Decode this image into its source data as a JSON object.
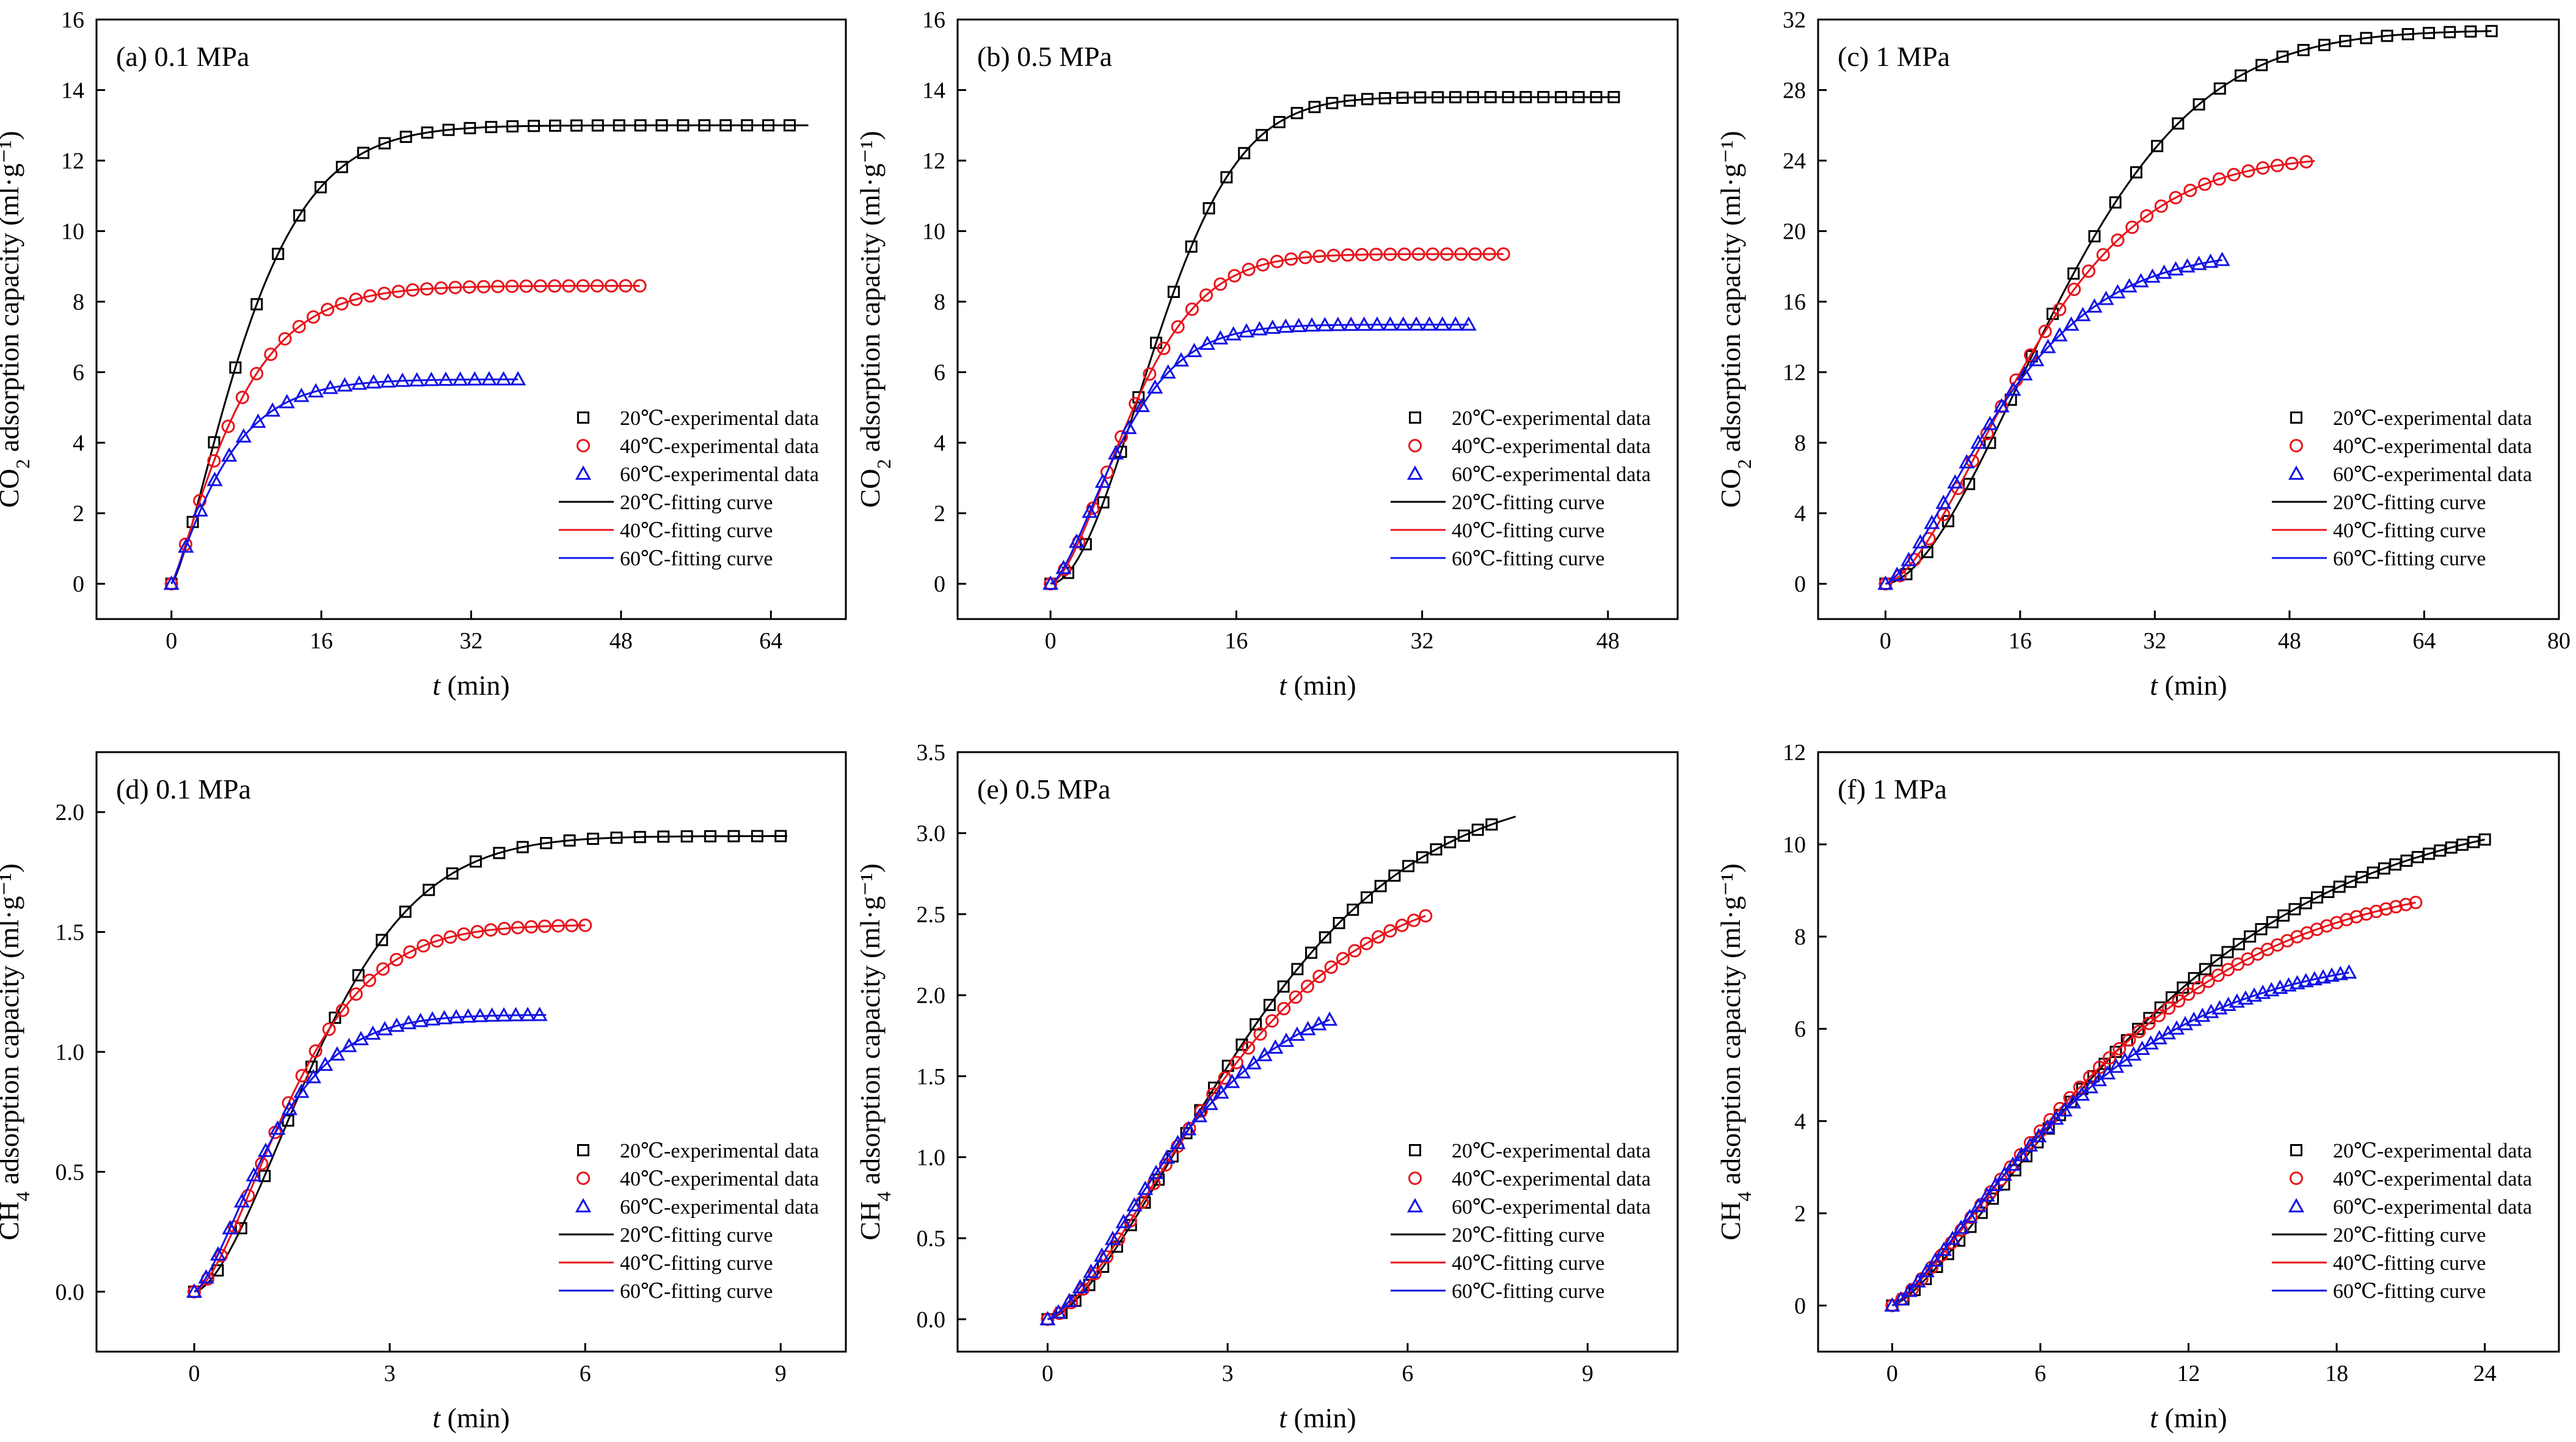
{
  "colors": {
    "s20": "#000000",
    "s40": "#e8141b",
    "s60": "#1414e6"
  },
  "legend": {
    "exp20": "20℃-experimental data",
    "exp40": "40℃-experimental data",
    "exp60": "60℃-experimental data",
    "fit20": "20℃-fitting curve",
    "fit40": "40℃-fitting curve",
    "fit60": "60℃-fitting curve"
  },
  "xlabel": "(min)",
  "chart_data": [
    {
      "panel": "(a) 0.1 MPa",
      "type": "scatter",
      "gas": "CO2",
      "ylabel": "adsorption capacity (ml·g⁻¹)",
      "xlim": [
        -8,
        72
      ],
      "ylim": [
        -1,
        16
      ],
      "xticks": [
        0,
        16,
        32,
        48,
        64
      ],
      "yticks": [
        0,
        2,
        4,
        6,
        8,
        10,
        12,
        14,
        16
      ],
      "series": [
        {
          "name": "20℃",
          "marker": "square",
          "qmax": 13.0,
          "rate": 0.105,
          "rexp": 1.35,
          "tmax": 68,
          "xmax_exp": 66,
          "n": 30
        },
        {
          "name": "40℃",
          "marker": "circle",
          "qmax": 8.45,
          "rate": 0.13,
          "rexp": 1.2,
          "tmax": 50,
          "xmax_exp": 50,
          "n": 34
        },
        {
          "name": "60℃",
          "marker": "triangle",
          "qmax": 5.8,
          "rate": 0.16,
          "rexp": 1.15,
          "tmax": 37,
          "xmax_exp": 37,
          "n": 25
        }
      ]
    },
    {
      "panel": "(b) 0.5 MPa",
      "type": "scatter",
      "gas": "CO2",
      "ylabel": "adsorption capacity (ml·g⁻¹)",
      "xlim": [
        -8,
        54
      ],
      "ylim": [
        -1,
        16
      ],
      "xticks": [
        0,
        16,
        32,
        48
      ],
      "yticks": [
        0,
        2,
        4,
        6,
        8,
        10,
        12,
        14,
        16
      ],
      "series": [
        {
          "name": "20℃",
          "marker": "square",
          "qmax": 13.8,
          "rate": 0.09,
          "rexp": 1.9,
          "tmax": 49,
          "xmax_exp": 48.5,
          "n": 33
        },
        {
          "name": "40℃",
          "marker": "circle",
          "qmax": 9.35,
          "rate": 0.118,
          "rexp": 1.6,
          "tmax": 39,
          "xmax_exp": 39,
          "n": 33
        },
        {
          "name": "60℃",
          "marker": "triangle",
          "qmax": 7.35,
          "rate": 0.14,
          "rexp": 1.5,
          "tmax": 36,
          "xmax_exp": 36,
          "n": 33
        }
      ]
    },
    {
      "panel": "(c) 1 MPa",
      "type": "scatter",
      "gas": "CO2",
      "ylabel": "adsorption capacity (ml·g⁻¹)",
      "xlim": [
        -8,
        80
      ],
      "ylim": [
        -2,
        32
      ],
      "xticks": [
        0,
        16,
        32,
        48,
        64,
        80
      ],
      "yticks": [
        0,
        4,
        8,
        12,
        16,
        20,
        24,
        28,
        32
      ],
      "series": [
        {
          "name": "20℃",
          "marker": "square",
          "qmax": 31.4,
          "rate": 0.04,
          "rexp": 1.75,
          "tmax": 72,
          "xmax_exp": 72,
          "n": 30
        },
        {
          "name": "40℃",
          "marker": "circle",
          "qmax": 24.3,
          "rate": 0.049,
          "rexp": 1.6,
          "tmax": 51,
          "xmax_exp": 50,
          "n": 30
        },
        {
          "name": "60℃",
          "marker": "triangle",
          "qmax": 18.9,
          "rate": 0.06,
          "rexp": 1.45,
          "tmax": 40,
          "xmax_exp": 40,
          "n": 30
        }
      ]
    },
    {
      "panel": "(d) 0.1 MPa",
      "type": "scatter",
      "gas": "CH4",
      "ylabel": "adsorption capacity (ml·g⁻¹)",
      "xlim": [
        -1.5,
        10
      ],
      "ylim": [
        -0.25,
        2.25
      ],
      "xticks": [
        0,
        3,
        6,
        9
      ],
      "yticks": [
        0.0,
        0.5,
        1.0,
        1.5,
        2.0
      ],
      "series": [
        {
          "name": "20℃",
          "marker": "square",
          "qmax": 1.9,
          "rate": 0.44,
          "rexp": 1.65,
          "tmax": 9.1,
          "xmax_exp": 9.0,
          "n": 26
        },
        {
          "name": "40℃",
          "marker": "circle",
          "qmax": 1.53,
          "rate": 0.56,
          "rexp": 1.55,
          "tmax": 6.0,
          "xmax_exp": 6.0,
          "n": 30
        },
        {
          "name": "60℃",
          "marker": "triangle",
          "qmax": 1.155,
          "rate": 0.72,
          "rexp": 1.45,
          "tmax": 5.4,
          "xmax_exp": 5.3,
          "n": 30
        }
      ]
    },
    {
      "panel": "(e) 0.5 MPa",
      "type": "scatter",
      "gas": "CH4",
      "ylabel": "adsorption capacity (ml·g⁻¹)",
      "xlim": [
        -1.5,
        10.5
      ],
      "ylim": [
        -0.2,
        3.5
      ],
      "xticks": [
        0,
        3,
        6,
        9
      ],
      "yticks": [
        0.0,
        0.5,
        1.0,
        1.5,
        2.0,
        2.5,
        3.0,
        3.5
      ],
      "series": [
        {
          "name": "20℃",
          "marker": "square",
          "qmax": 3.3,
          "rate": 0.25,
          "rexp": 1.55,
          "tmax": 7.8,
          "xmax_exp": 7.4,
          "n": 33
        },
        {
          "name": "40℃",
          "marker": "circle",
          "qmax": 2.72,
          "rate": 0.29,
          "rexp": 1.5,
          "tmax": 6.3,
          "xmax_exp": 6.3,
          "n": 33
        },
        {
          "name": "60℃",
          "marker": "triangle",
          "qmax": 2.05,
          "rate": 0.38,
          "rexp": 1.45,
          "tmax": 4.7,
          "xmax_exp": 4.7,
          "n": 27
        }
      ]
    },
    {
      "panel": "(f) 1 MPa",
      "type": "scatter",
      "gas": "CH4",
      "ylabel": "adsorption capacity (ml·g⁻¹)",
      "xlim": [
        -3,
        27
      ],
      "ylim": [
        -1,
        12
      ],
      "xticks": [
        0,
        6,
        12,
        18,
        24
      ],
      "yticks": [
        0,
        2,
        4,
        6,
        8,
        10,
        12
      ],
      "series": [
        {
          "name": "20℃",
          "marker": "square",
          "qmax": 10.9,
          "rate": 0.085,
          "rexp": 1.35,
          "tmax": 24,
          "xmax_exp": 24,
          "n": 54
        },
        {
          "name": "40℃",
          "marker": "circle",
          "qmax": 9.4,
          "rate": 0.1,
          "rexp": 1.3,
          "tmax": 21.2,
          "xmax_exp": 21.2,
          "n": 54
        },
        {
          "name": "60℃",
          "marker": "triangle",
          "qmax": 7.7,
          "rate": 0.12,
          "rexp": 1.28,
          "tmax": 18.5,
          "xmax_exp": 18.5,
          "n": 54
        }
      ]
    }
  ]
}
